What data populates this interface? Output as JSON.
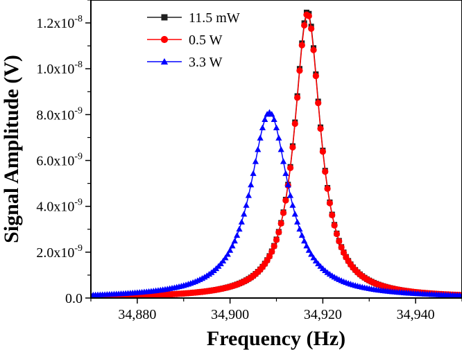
{
  "chart_data": {
    "type": "line",
    "xlabel": "Frequency (Hz)",
    "ylabel": "Signal Amplitude (V)",
    "xlim": [
      34870,
      34950
    ],
    "ylim": [
      0,
      1.3e-08
    ],
    "x_ticks": [
      {
        "value": 34880,
        "label": "34,880"
      },
      {
        "value": 34900,
        "label": "34,900"
      },
      {
        "value": 34920,
        "label": "34,920"
      },
      {
        "value": 34940,
        "label": "34,940"
      }
    ],
    "y_ticks": [
      {
        "value": 0,
        "mant": "0.0",
        "exp": ""
      },
      {
        "value": 2e-09,
        "mant": "2.0x10",
        "exp": "-9"
      },
      {
        "value": 4e-09,
        "mant": "4.0x10",
        "exp": "-9"
      },
      {
        "value": 6e-09,
        "mant": "6.0x10",
        "exp": "-9"
      },
      {
        "value": 8e-09,
        "mant": "8.0x10",
        "exp": "-9"
      },
      {
        "value": 1e-08,
        "mant": "1.0x10",
        "exp": "-8"
      },
      {
        "value": 1.2e-08,
        "mant": "1.2x10",
        "exp": "-8"
      }
    ],
    "grid": false,
    "legend_position": "top-left",
    "sampling": {
      "x_start": 34870,
      "x_end": 34950,
      "x_step": 0.5
    },
    "series": [
      {
        "name": "11.5 mW",
        "marker": "square",
        "color": "#1f1f1f",
        "peak_x": 34916.7,
        "peak_y": 1.25e-08,
        "half_width": 3.4
      },
      {
        "name": "0.5 W",
        "marker": "circle",
        "color": "#ff0000",
        "peak_x": 34916.7,
        "peak_y": 1.24e-08,
        "half_width": 3.4
      },
      {
        "name": "3.3 W",
        "marker": "triangle",
        "color": "#0000ff",
        "peak_x": 34908.5,
        "peak_y": 8.1e-09,
        "half_width": 5.0
      }
    ]
  }
}
